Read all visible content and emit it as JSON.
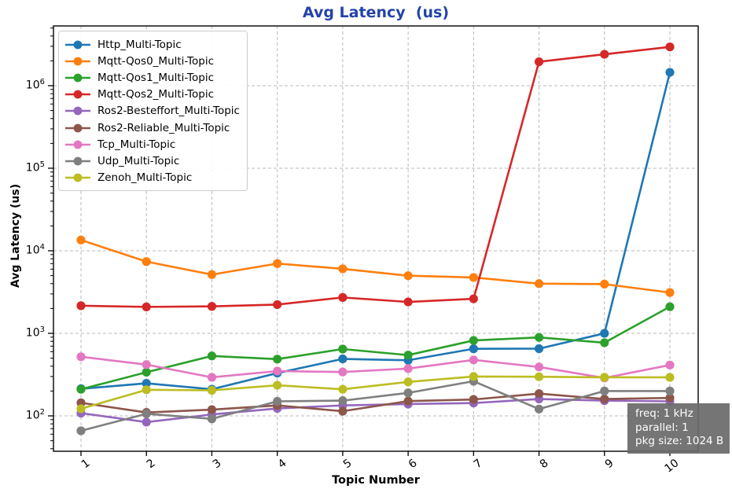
{
  "title": {
    "text": "Avg Latency  (us)",
    "color": "#2343a8"
  },
  "axes": {
    "x_label": "Topic Number",
    "y_label": "Avg Latency (us)",
    "x_tick_labels": [
      "1",
      "2",
      "3",
      "4",
      "5",
      "6",
      "7",
      "8",
      "9",
      "10"
    ],
    "y_tick_labels": [
      {
        "base": "10",
        "exp": "2"
      },
      {
        "base": "10",
        "exp": "3"
      },
      {
        "base": "10",
        "exp": "4"
      },
      {
        "base": "10",
        "exp": "5"
      },
      {
        "base": "10",
        "exp": "6"
      }
    ]
  },
  "annotation": {
    "lines": [
      "freq: 1 kHz",
      "parallel: 1",
      "pkg size: 1024 B"
    ]
  },
  "chart_data": {
    "type": "line",
    "title": "Avg Latency  (us)",
    "xlabel": "Topic Number",
    "ylabel": "Avg Latency (us)",
    "x": [
      1,
      2,
      3,
      4,
      5,
      6,
      7,
      8,
      9,
      10
    ],
    "y_scale": "log",
    "ylim_approx": [
      40,
      5300000
    ],
    "y_major_ticks": [
      100,
      1000,
      10000,
      100000,
      1000000
    ],
    "grid": "dashed gray, major ticks both axes",
    "legend_position": "upper left",
    "marker": "circle",
    "series": [
      {
        "name": "Http_Multi-Topic",
        "color": "#1f77b4",
        "values": [
          213,
          248,
          210,
          330,
          490,
          472,
          650,
          652,
          1000,
          1450000
        ]
      },
      {
        "name": "Mqtt-Qos0_Multi-Topic",
        "color": "#ff7f0e",
        "values": [
          13500,
          7400,
          5150,
          7000,
          6050,
          4990,
          4750,
          4000,
          3950,
          3120
        ]
      },
      {
        "name": "Mqtt-Qos1_Multi-Topic",
        "color": "#2ca02c",
        "values": [
          210,
          338,
          532,
          487,
          645,
          545,
          820,
          893,
          770,
          2100
        ]
      },
      {
        "name": "Mqtt-Qos2_Multi-Topic",
        "color": "#d62728",
        "values": [
          2160,
          2090,
          2120,
          2230,
          2720,
          2400,
          2620,
          1950000,
          2400000,
          2950000
        ]
      },
      {
        "name": "Ros2-Besteffort_Multi-Topic",
        "color": "#9467bd",
        "values": [
          108,
          84,
          104,
          123,
          134,
          139,
          143,
          160,
          153,
          150
        ]
      },
      {
        "name": "Ros2-Reliable_Multi-Topic",
        "color": "#8c564b",
        "values": [
          144,
          110,
          119,
          134,
          114,
          151,
          158,
          186,
          160,
          165
        ]
      },
      {
        "name": "Tcp_Multi-Topic",
        "color": "#e377c2",
        "values": [
          520,
          418,
          293,
          349,
          340,
          374,
          476,
          391,
          288,
          413
        ]
      },
      {
        "name": "Udp_Multi-Topic",
        "color": "#7f7f7f",
        "values": [
          66,
          106,
          92,
          150,
          153,
          190,
          263,
          121,
          200,
          200
        ]
      },
      {
        "name": "Zenoh_Multi-Topic",
        "color": "#bcbd22",
        "values": [
          122,
          207,
          204,
          235,
          210,
          258,
          300,
          298,
          293,
          293
        ]
      }
    ]
  }
}
